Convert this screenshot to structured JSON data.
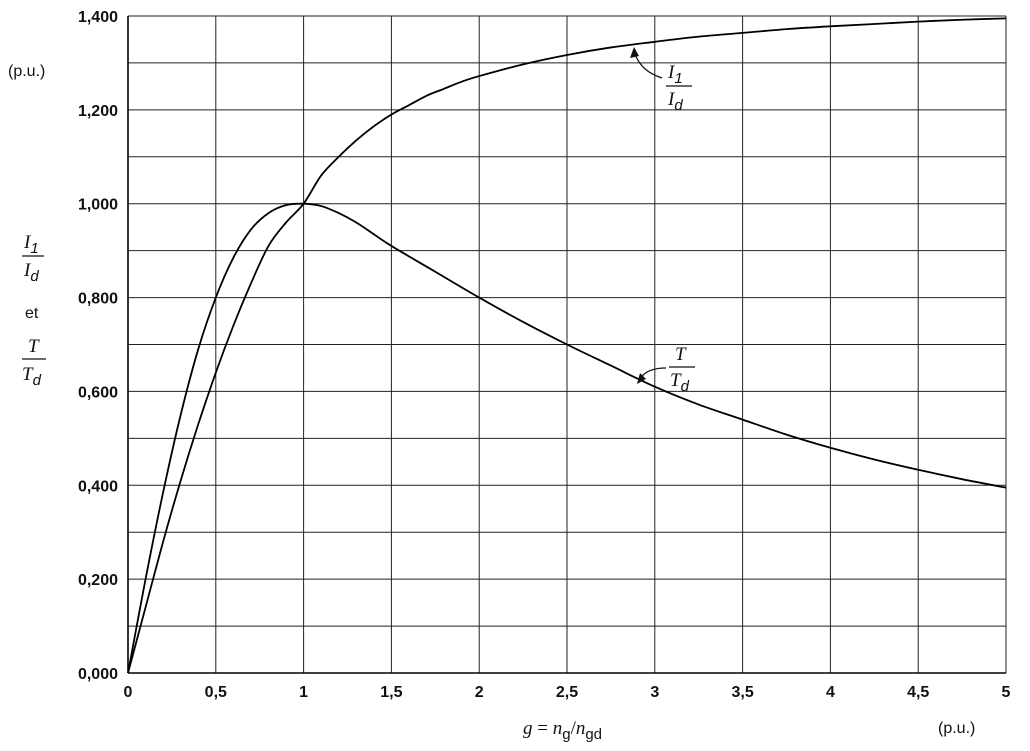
{
  "chart_data": {
    "type": "line",
    "x_unit": "(p.u.)",
    "y_unit": "(p.u.)",
    "xlim": [
      0,
      5
    ],
    "ylim": [
      0,
      1.4
    ],
    "x_ticks": [
      {
        "v": 0,
        "label": "0"
      },
      {
        "v": 0.5,
        "label": "0,5"
      },
      {
        "v": 1,
        "label": "1"
      },
      {
        "v": 1.5,
        "label": "1,5"
      },
      {
        "v": 2,
        "label": "2"
      },
      {
        "v": 2.5,
        "label": "2,5"
      },
      {
        "v": 3,
        "label": "3"
      },
      {
        "v": 3.5,
        "label": "3,5"
      },
      {
        "v": 4,
        "label": "4"
      },
      {
        "v": 4.5,
        "label": "4,5"
      },
      {
        "v": 5,
        "label": "5"
      }
    ],
    "y_ticks": [
      {
        "v": 0,
        "label": "0,000"
      },
      {
        "v": 0.2,
        "label": "0,200"
      },
      {
        "v": 0.4,
        "label": "0,400"
      },
      {
        "v": 0.6,
        "label": "0,600"
      },
      {
        "v": 0.8,
        "label": "0,800"
      },
      {
        "v": 1.0,
        "label": "1,000"
      },
      {
        "v": 1.2,
        "label": "1,200"
      },
      {
        "v": 1.4,
        "label": "1,400"
      }
    ],
    "x_grid_step": 0.5,
    "y_grid_step": 0.1,
    "grid": true,
    "xlabel": {
      "g": "g",
      "eq": " = ",
      "n1": "n",
      "s1": "g",
      "slash": "/",
      "n2": "n",
      "s2": "gd"
    },
    "ylabel": {
      "num1": "I",
      "num1_sub": "1",
      "den1": "I",
      "den1_sub": "d",
      "conj": "et",
      "num2": "T",
      "den2": "T",
      "den2_sub": "d"
    },
    "series": [
      {
        "label": {
          "num": "I",
          "num_sub": "1",
          "den": "I",
          "den_sub": "d"
        },
        "x": [
          0,
          0.1,
          0.2,
          0.3,
          0.4,
          0.5,
          0.6,
          0.7,
          0.8,
          0.9,
          1.0,
          1.1,
          1.2,
          1.3,
          1.4,
          1.5,
          1.6,
          1.7,
          1.8,
          1.9,
          2.0,
          2.25,
          2.5,
          2.75,
          3.0,
          3.25,
          3.5,
          3.75,
          4.0,
          4.25,
          4.5,
          4.75,
          5.0
        ],
        "y": [
          0,
          0.14,
          0.28,
          0.41,
          0.53,
          0.64,
          0.74,
          0.83,
          0.91,
          0.96,
          1.0,
          1.06,
          1.1,
          1.135,
          1.165,
          1.19,
          1.21,
          1.23,
          1.245,
          1.26,
          1.272,
          1.297,
          1.317,
          1.333,
          1.345,
          1.356,
          1.364,
          1.372,
          1.378,
          1.383,
          1.388,
          1.392,
          1.395
        ]
      },
      {
        "label": {
          "num": "T",
          "den": "T",
          "den_sub": "d"
        },
        "x": [
          0,
          0.1,
          0.2,
          0.3,
          0.4,
          0.5,
          0.6,
          0.7,
          0.8,
          0.9,
          1.0,
          1.1,
          1.2,
          1.3,
          1.4,
          1.5,
          1.75,
          2.0,
          2.25,
          2.5,
          2.75,
          3.0,
          3.25,
          3.5,
          3.75,
          4.0,
          4.25,
          4.5,
          4.75,
          5.0
        ],
        "y": [
          0,
          0.2,
          0.385,
          0.55,
          0.69,
          0.8,
          0.885,
          0.945,
          0.98,
          0.997,
          1.0,
          0.995,
          0.98,
          0.96,
          0.935,
          0.91,
          0.855,
          0.8,
          0.748,
          0.7,
          0.655,
          0.61,
          0.572,
          0.54,
          0.508,
          0.48,
          0.455,
          0.433,
          0.413,
          0.395
        ]
      }
    ]
  }
}
